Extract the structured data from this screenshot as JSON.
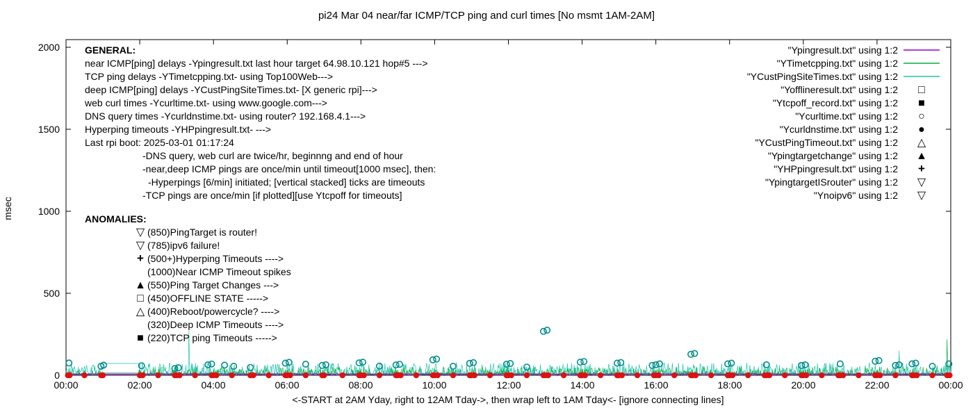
{
  "icons": {
    "open-square": "□",
    "filled-square": "■",
    "open-circle": "○",
    "filled-circle": "●",
    "open-triangle": "△",
    "filled-triangle": "▲",
    "open-down-triangle": "▽",
    "plus": "+"
  },
  "general": {
    "header": "GENERAL:",
    "lines": [
      "near ICMP[ping] delays -Ypingresult.txt last hour target 64.98.10.121 hop#5 --->",
      "TCP ping delays -YTimetcpping.txt- using Top100Web--->",
      "deep ICMP[ping] delays -YCustPingSiteTimes.txt- [X generic rpi]--->",
      "web curl times -Ycurltime.txt- using www.google.com--->",
      "DNS query times -Ycurldnstime.txt- using router? 192.168.4.1--->",
      "Hyperping timeouts -YHPpingresult.txt- --->",
      "Last rpi boot: 2025-03-01 01:17:24",
      "-DNS query, web curl are twice/hr, beginnng and end of hour",
      "-near,deep ICMP pings are once/min until timeout[1000 msec], then:",
      "-Hyperpings [6/min] initiated; [vertical stacked] ticks are timeouts",
      "-TCP pings are once/min [if plotted][use Ytcpoff for timeouts]"
    ]
  },
  "anomalies": {
    "header": "ANOMALIES:",
    "items": [
      {
        "marker": "open-down-triangle",
        "color": "#00b2b2",
        "text": "(850)PingTarget is router!"
      },
      {
        "marker": "open-down-triangle",
        "color": "#ff8c00",
        "text": "(785)ipv6 failure!"
      },
      {
        "marker": "plus",
        "color": "#00a040",
        "text": "(500+)Hyperping Timeouts ---->"
      },
      {
        "marker": "none",
        "color": "",
        "text": "(1000)Near ICMP Timeout spikes"
      },
      {
        "marker": "filled-triangle",
        "color": "#9400d3",
        "text": "(550)Ping Target Changes --->"
      },
      {
        "marker": "open-square",
        "color": "#ff8c00",
        "text": "(450)OFFLINE STATE ----->"
      },
      {
        "marker": "open-triangle",
        "color": "#000000",
        "text": "(400)Reboot/powercycle? ---->"
      },
      {
        "marker": "none",
        "color": "",
        "text": "(320)Deep ICMP Timeouts ---->"
      },
      {
        "marker": "filled-square",
        "color": "#efdf00",
        "text": "(220)TCP ping Timeouts ----->"
      }
    ]
  },
  "chart_data": {
    "type": "line+scatter",
    "title": "pi24 Mar 04  near/far ICMP/TCP ping and curl times [No msmt 1AM-2AM]",
    "ylabel": "msec",
    "xlabel": "<-START at 2AM Yday, right to 12AM Tday->, then wrap left to 1AM Tday<- [ignore connecting lines]",
    "ylim": [
      0,
      2000
    ],
    "ytick_values": [
      0,
      500,
      1000,
      1500,
      2000
    ],
    "ytick_labels": [
      "0",
      "500",
      "1000",
      "1500",
      "2000"
    ],
    "xlim_hours": [
      0,
      24
    ],
    "xtick_hours": [
      0,
      2,
      4,
      6,
      8,
      10,
      12,
      14,
      16,
      18,
      20,
      22,
      24
    ],
    "xtick_labels": [
      "00:00",
      "02:00",
      "04:00",
      "06:00",
      "08:00",
      "10:00",
      "12:00",
      "14:00",
      "16:00",
      "18:00",
      "20:00",
      "22:00",
      "00:00"
    ],
    "grid": false,
    "legend_position": "top-right-outside",
    "no_measurement_window_hours": [
      1.03,
      1.97
    ],
    "series": [
      {
        "name": "Ypingresult.txt",
        "legend_label": "\"Ypingresult.txt\" using 1:2",
        "type": "line",
        "marker": "line",
        "color": "#9400d3",
        "width": 1.3,
        "base": 6,
        "amp": 3,
        "pow": 1,
        "gap_hold": 7,
        "seed": 11,
        "spikes": []
      },
      {
        "name": "YTimetcpping.txt",
        "legend_label": "\"YTimetcpping.txt\" using 1:2",
        "type": "line",
        "marker": "line",
        "color": "#00b140",
        "width": 0.7,
        "base": 2,
        "amp": 50,
        "pow": 3,
        "gap_hold": 14,
        "seed": 22,
        "spikes": [
          [
            23.9,
            220
          ]
        ]
      },
      {
        "name": "YCustPingSiteTimes.txt",
        "legend_label": "\"YCustPingSiteTimes.txt\" using 1:2",
        "type": "line",
        "marker": "line",
        "color": "#20c3ae",
        "width": 0.7,
        "base": 4,
        "amp": 72,
        "pow": 2.5,
        "gap_hold": 72,
        "seed": 33,
        "spikes": [
          [
            3.34,
            270
          ],
          [
            22.6,
            150
          ]
        ]
      },
      {
        "name": "Yofflineresult.txt",
        "legend_label": "\"Yofflineresult.txt\" using 1:2",
        "type": "points",
        "marker": "open-square",
        "color": "#ff8c00",
        "points": []
      },
      {
        "name": "Ytcpoff_record.txt",
        "legend_label": "\"Ytcpoff_record.txt\" using 1:2",
        "type": "points",
        "marker": "filled-square",
        "color": "#efdf00",
        "points": []
      },
      {
        "name": "Ycurltime.txt",
        "legend_label": "\"Ycurltime.txt\" using 1:2",
        "type": "points",
        "marker": "open-circle",
        "color": "#008b8b",
        "points": [
          [
            0.08,
            75
          ],
          [
            0.95,
            55
          ],
          [
            1.02,
            62
          ],
          [
            2.05,
            58
          ],
          [
            2.95,
            42
          ],
          [
            3.05,
            46
          ],
          [
            3.85,
            64
          ],
          [
            3.95,
            69
          ],
          [
            4.3,
            62
          ],
          [
            4.55,
            55
          ],
          [
            5.0,
            48
          ],
          [
            5.95,
            74
          ],
          [
            6.05,
            79
          ],
          [
            6.5,
            68
          ],
          [
            6.95,
            60
          ],
          [
            7.05,
            64
          ],
          [
            7.95,
            76
          ],
          [
            8.05,
            80
          ],
          [
            8.5,
            56
          ],
          [
            8.95,
            63
          ],
          [
            9.05,
            67
          ],
          [
            9.95,
            94
          ],
          [
            10.05,
            99
          ],
          [
            10.5,
            55
          ],
          [
            10.95,
            73
          ],
          [
            11.05,
            77
          ],
          [
            11.95,
            68
          ],
          [
            12.05,
            72
          ],
          [
            12.5,
            50
          ],
          [
            12.95,
            268
          ],
          [
            13.05,
            275
          ],
          [
            13.95,
            80
          ],
          [
            14.05,
            84
          ],
          [
            14.95,
            74
          ],
          [
            15.05,
            78
          ],
          [
            15.9,
            60
          ],
          [
            16.0,
            64
          ],
          [
            16.1,
            70
          ],
          [
            16.95,
            128
          ],
          [
            17.05,
            133
          ],
          [
            17.95,
            70
          ],
          [
            18.05,
            74
          ],
          [
            19.0,
            64
          ],
          [
            19.95,
            60
          ],
          [
            20.05,
            64
          ],
          [
            21.0,
            70
          ],
          [
            21.95,
            86
          ],
          [
            22.05,
            90
          ],
          [
            22.5,
            60
          ],
          [
            22.6,
            64
          ],
          [
            22.95,
            70
          ],
          [
            23.05,
            74
          ],
          [
            23.5,
            55
          ],
          [
            23.95,
            70
          ]
        ]
      },
      {
        "name": "Ycurldnstime.txt",
        "legend_label": "\"Ycurldnstime.txt\" using 1:2",
        "type": "points",
        "marker": "filled-circle",
        "color": "#dd1111",
        "msec": 0,
        "point_hours": [
          0.05,
          0.1,
          0.5,
          0.95,
          1.0,
          2.0,
          2.08,
          2.5,
          2.95,
          3.0,
          3.08,
          3.5,
          3.95,
          4.0,
          4.08,
          4.5,
          5.0,
          5.08,
          5.5,
          5.95,
          6.0,
          6.08,
          6.5,
          6.95,
          7.0,
          7.5,
          7.95,
          8.0,
          8.08,
          8.5,
          8.95,
          9.0,
          9.08,
          9.5,
          9.95,
          10.0,
          10.08,
          10.5,
          10.95,
          11.0,
          11.08,
          11.5,
          11.95,
          12.0,
          12.08,
          12.5,
          12.95,
          13.0,
          13.08,
          13.5,
          13.95,
          14.0,
          14.08,
          14.5,
          14.95,
          15.0,
          15.08,
          15.5,
          15.95,
          16.0,
          16.08,
          16.5,
          16.95,
          17.0,
          17.08,
          17.5,
          17.95,
          18.0,
          18.08,
          18.5,
          18.95,
          19.0,
          19.08,
          19.5,
          19.95,
          20.0,
          20.08,
          20.5,
          20.95,
          21.0,
          21.08,
          21.5,
          21.95,
          22.0,
          22.08,
          22.5,
          22.95,
          23.0,
          23.08,
          23.5,
          23.9,
          23.97
        ]
      },
      {
        "name": "YCustPingTimeout.txt",
        "legend_label": "\"YCustPingTimeout.txt\" using 1:2",
        "type": "points",
        "marker": "open-triangle",
        "color": "#000000",
        "points": []
      },
      {
        "name": "Ypingtargetchange",
        "legend_label": "\"Ypingtargetchange\" using 1:2",
        "type": "points",
        "marker": "filled-triangle",
        "color": "#9400d3",
        "points": []
      },
      {
        "name": "YHPpingresult.txt",
        "legend_label": "\"YHPpingresult.txt\" using 1:2",
        "type": "points",
        "marker": "plus",
        "color": "#00a040",
        "points": []
      },
      {
        "name": "YpingtargetISrouter",
        "legend_label": "\"YpingtargetISrouter\" using 1:2",
        "type": "points",
        "marker": "open-down-triangle",
        "color": "#00b2b2",
        "points": []
      },
      {
        "name": "Ynoipv6",
        "legend_label": "\"Ynoipv6\" using 1:2",
        "type": "points",
        "marker": "open-down-triangle",
        "color": "#ff8c00",
        "points": []
      }
    ]
  }
}
